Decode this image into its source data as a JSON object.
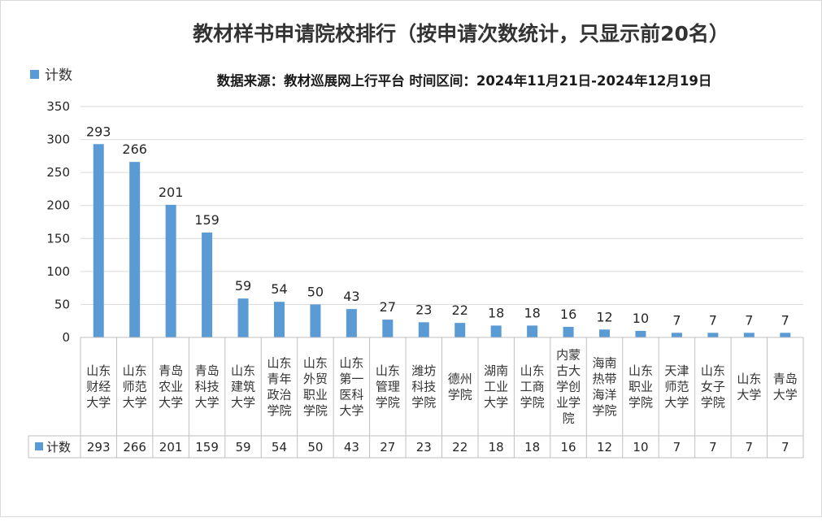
{
  "chart_data": {
    "type": "bar",
    "title": "教材样书申请院校排行（按申请次数统计，只显示前20名）",
    "subtitle": "数据来源：教材巡展网上行平台 时间区间：2024年11月21日-2024年12月19日",
    "series": [
      {
        "name": "计数",
        "color": "#5b9bd5",
        "values": [
          293,
          266,
          201,
          159,
          59,
          54,
          50,
          43,
          27,
          23,
          22,
          18,
          18,
          16,
          12,
          10,
          7,
          7,
          7,
          7
        ]
      }
    ],
    "categories": [
      [
        "山东",
        "财经",
        "大学"
      ],
      [
        "山东",
        "师范",
        "大学"
      ],
      [
        "青岛",
        "农业",
        "大学"
      ],
      [
        "青岛",
        "科技",
        "大学"
      ],
      [
        "山东",
        "建筑",
        "大学"
      ],
      [
        "山东",
        "青年",
        "政治",
        "学院"
      ],
      [
        "山东",
        "外贸",
        "职业",
        "学院"
      ],
      [
        "山东",
        "第一",
        "医科",
        "大学"
      ],
      [
        "山东",
        "管理",
        "学院"
      ],
      [
        "潍坊",
        "科技",
        "学院"
      ],
      [
        "德州",
        "学院"
      ],
      [
        "湖南",
        "工业",
        "大学"
      ],
      [
        "山东",
        "工商",
        "学院"
      ],
      [
        "内蒙",
        "古大",
        "学创",
        "业学",
        "院"
      ],
      [
        "海南",
        "热带",
        "海洋",
        "学院"
      ],
      [
        "山东",
        "职业",
        "学院"
      ],
      [
        "天津",
        "师范",
        "大学"
      ],
      [
        "山东",
        "女子",
        "学院"
      ],
      [
        "山东",
        "大学"
      ],
      [
        "青岛",
        "大学"
      ]
    ],
    "yticks": [
      0,
      50,
      100,
      150,
      200,
      250,
      300,
      350
    ],
    "ylim": [
      0,
      350
    ],
    "grid": true,
    "legend": "top-left",
    "data_table": true
  }
}
